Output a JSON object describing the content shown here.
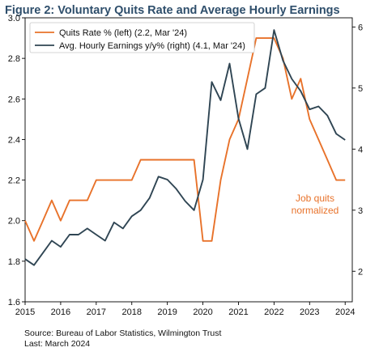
{
  "title": "Figure 2: Voluntary Quits Rate and Average Hourly Earnings",
  "source_lines": [
    "Source: Bureau of Labor Statistics, Wilmington Trust",
    "Last: March 2024"
  ],
  "chart_data": {
    "type": "line",
    "title": "Figure 2: Voluntary Quits Rate and Average Hourly Earnings",
    "xlim": [
      2015,
      2024.2
    ],
    "x_ticks": [
      2015,
      2016,
      2017,
      2018,
      2019,
      2020,
      2021,
      2022,
      2023,
      2024
    ],
    "y_left": {
      "lim": [
        1.6,
        3.0
      ],
      "ticks": [
        "1.6",
        "1.8",
        "2.0",
        "2.2",
        "2.4",
        "2.6",
        "2.8",
        "3.0"
      ]
    },
    "y_right": {
      "lim": [
        1.5,
        6.15
      ],
      "ticks": [
        "2",
        "3",
        "4",
        "5",
        "6"
      ]
    },
    "legend_position": "top-left",
    "grid": false,
    "series": [
      {
        "name": "Quits Rate % (left) (2.2, Mar '24)",
        "axis": "left",
        "color": "#e8722a",
        "points": [
          [
            2015.0,
            2.0
          ],
          [
            2015.25,
            1.9
          ],
          [
            2015.5,
            2.0
          ],
          [
            2015.75,
            2.1
          ],
          [
            2016.0,
            2.0
          ],
          [
            2016.25,
            2.1
          ],
          [
            2016.5,
            2.1
          ],
          [
            2016.75,
            2.1
          ],
          [
            2017.0,
            2.2
          ],
          [
            2017.25,
            2.2
          ],
          [
            2017.5,
            2.2
          ],
          [
            2017.75,
            2.2
          ],
          [
            2018.0,
            2.2
          ],
          [
            2018.25,
            2.3
          ],
          [
            2018.5,
            2.3
          ],
          [
            2018.75,
            2.3
          ],
          [
            2019.0,
            2.3
          ],
          [
            2019.25,
            2.3
          ],
          [
            2019.5,
            2.3
          ],
          [
            2019.75,
            2.3
          ],
          [
            2020.0,
            1.9
          ],
          [
            2020.25,
            1.9
          ],
          [
            2020.5,
            2.2
          ],
          [
            2020.75,
            2.4
          ],
          [
            2021.0,
            2.5
          ],
          [
            2021.25,
            2.7
          ],
          [
            2021.5,
            2.9
          ],
          [
            2021.75,
            2.9
          ],
          [
            2022.0,
            2.9
          ],
          [
            2022.25,
            2.8
          ],
          [
            2022.5,
            2.6
          ],
          [
            2022.75,
            2.7
          ],
          [
            2023.0,
            2.5
          ],
          [
            2023.25,
            2.4
          ],
          [
            2023.5,
            2.3
          ],
          [
            2023.75,
            2.2
          ],
          [
            2024.0,
            2.2
          ]
        ]
      },
      {
        "name": "Avg. Hourly Earnings y/y% (right) (4.1, Mar '24)",
        "axis": "right",
        "color": "#2f4553",
        "points": [
          [
            2015.0,
            2.2
          ],
          [
            2015.25,
            2.1
          ],
          [
            2015.5,
            2.3
          ],
          [
            2015.75,
            2.5
          ],
          [
            2016.0,
            2.4
          ],
          [
            2016.25,
            2.6
          ],
          [
            2016.5,
            2.6
          ],
          [
            2016.75,
            2.7
          ],
          [
            2017.0,
            2.6
          ],
          [
            2017.25,
            2.5
          ],
          [
            2017.5,
            2.8
          ],
          [
            2017.75,
            2.7
          ],
          [
            2018.0,
            2.9
          ],
          [
            2018.25,
            3.0
          ],
          [
            2018.5,
            3.2
          ],
          [
            2018.75,
            3.55
          ],
          [
            2019.0,
            3.5
          ],
          [
            2019.25,
            3.35
          ],
          [
            2019.5,
            3.15
          ],
          [
            2019.75,
            3.0
          ],
          [
            2020.0,
            3.5
          ],
          [
            2020.25,
            5.1
          ],
          [
            2020.5,
            4.8
          ],
          [
            2020.75,
            5.4
          ],
          [
            2021.0,
            4.5
          ],
          [
            2021.25,
            4.0
          ],
          [
            2021.5,
            4.9
          ],
          [
            2021.75,
            5.0
          ],
          [
            2022.0,
            5.95
          ],
          [
            2022.25,
            5.45
          ],
          [
            2022.5,
            5.15
          ],
          [
            2022.75,
            4.95
          ],
          [
            2023.0,
            4.65
          ],
          [
            2023.25,
            4.7
          ],
          [
            2023.5,
            4.55
          ],
          [
            2023.75,
            4.25
          ],
          [
            2024.0,
            4.15
          ]
        ]
      }
    ],
    "annotations": [
      {
        "lines": [
          "Job quits",
          "normalized"
        ],
        "color": "#e8722a"
      }
    ]
  }
}
